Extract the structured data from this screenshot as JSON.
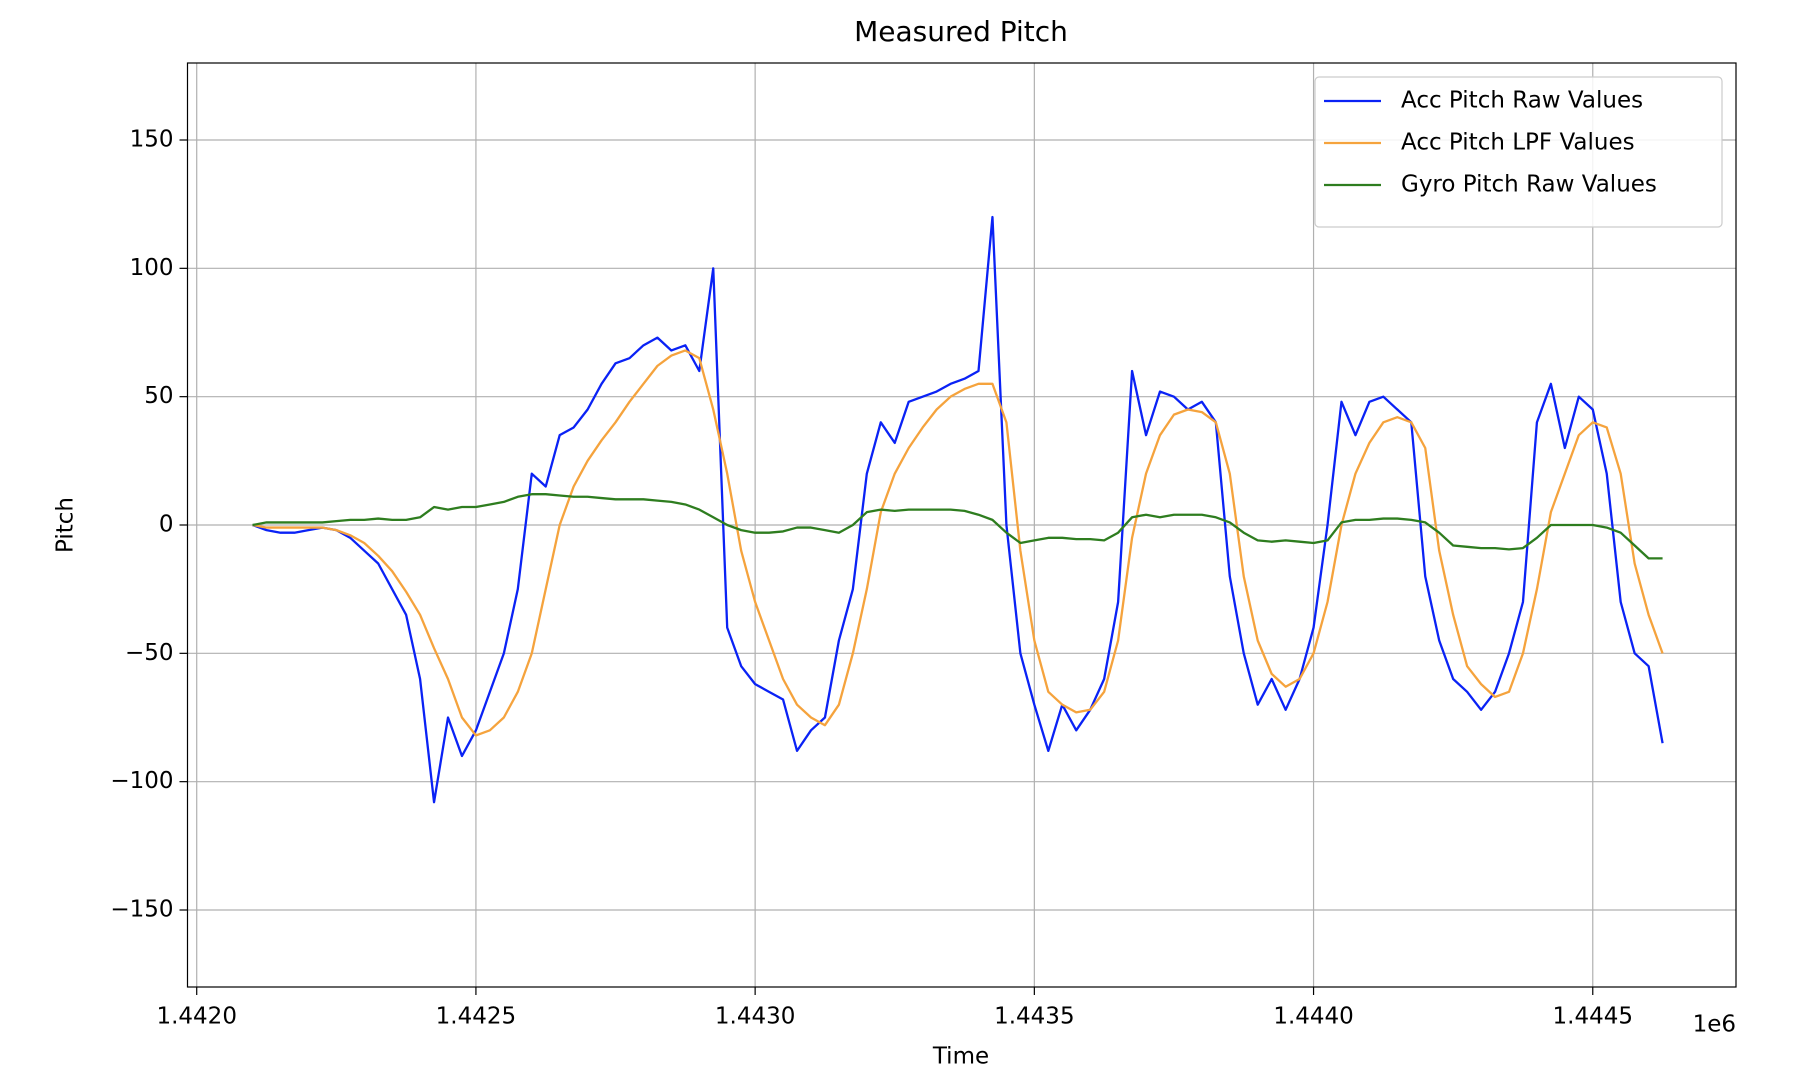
{
  "chart_data": {
    "type": "line",
    "title": "Measured Pitch",
    "xlabel": "Time",
    "ylabel": "Pitch",
    "x_offset_label": "1e6",
    "x": [
      1442100,
      1442125,
      1442150,
      1442175,
      1442200,
      1442225,
      1442250,
      1442275,
      1442300,
      1442325,
      1442350,
      1442375,
      1442400,
      1442425,
      1442450,
      1442475,
      1442500,
      1442525,
      1442550,
      1442575,
      1442600,
      1442625,
      1442650,
      1442675,
      1442700,
      1442725,
      1442750,
      1442775,
      1442800,
      1442825,
      1442850,
      1442875,
      1442900,
      1442925,
      1442950,
      1442975,
      1443000,
      1443025,
      1443050,
      1443075,
      1443100,
      1443125,
      1443150,
      1443175,
      1443200,
      1443225,
      1443250,
      1443275,
      1443300,
      1443325,
      1443350,
      1443375,
      1443400,
      1443425,
      1443450,
      1443475,
      1443500,
      1443525,
      1443550,
      1443575,
      1443600,
      1443625,
      1443650,
      1443675,
      1443700,
      1443725,
      1443750,
      1443775,
      1443800,
      1443825,
      1443850,
      1443875,
      1443900,
      1443925,
      1443950,
      1443975,
      1444000,
      1444025,
      1444050,
      1444075,
      1444100,
      1444125,
      1444150,
      1444175,
      1444200,
      1444225,
      1444250,
      1444275,
      1444300,
      1444325,
      1444350,
      1444375,
      1444400,
      1444425,
      1444450,
      1444475,
      1444500,
      1444525,
      1444550,
      1444575,
      1444600,
      1444625
    ],
    "series": [
      {
        "name": "Acc Pitch Raw Values",
        "color": "#0a22f5",
        "values": [
          0,
          -2,
          -3,
          -3,
          -2,
          -1,
          -2,
          -5,
          -10,
          -15,
          -25,
          -35,
          -60,
          -108,
          -75,
          -90,
          -80,
          -65,
          -50,
          -25,
          20,
          15,
          35,
          38,
          45,
          55,
          63,
          65,
          70,
          73,
          68,
          70,
          60,
          100,
          -40,
          -55,
          -62,
          -65,
          -68,
          -88,
          -80,
          -75,
          -45,
          -25,
          20,
          40,
          32,
          48,
          50,
          52,
          55,
          57,
          60,
          120,
          0,
          -50,
          -70,
          -88,
          -70,
          -80,
          -72,
          -60,
          -30,
          60,
          35,
          52,
          50,
          45,
          48,
          40,
          -20,
          -50,
          -70,
          -60,
          -72,
          -60,
          -40,
          0,
          48,
          35,
          48,
          50,
          45,
          40,
          -20,
          -45,
          -60,
          -65,
          -72,
          -65,
          -50,
          -30,
          40,
          55,
          30,
          50,
          45,
          20,
          -30,
          -50,
          -55,
          -85
        ]
      },
      {
        "name": "Acc Pitch LPF Values",
        "color": "#f5a33d",
        "values": [
          0,
          -1,
          -1,
          -1,
          -1,
          -1,
          -2,
          -4,
          -7,
          -12,
          -18,
          -26,
          -35,
          -48,
          -60,
          -75,
          -82,
          -80,
          -75,
          -65,
          -50,
          -25,
          0,
          15,
          25,
          33,
          40,
          48,
          55,
          62,
          66,
          68,
          65,
          45,
          20,
          -10,
          -30,
          -45,
          -60,
          -70,
          -75,
          -78,
          -70,
          -50,
          -25,
          5,
          20,
          30,
          38,
          45,
          50,
          53,
          55,
          55,
          40,
          -10,
          -45,
          -65,
          -70,
          -73,
          -72,
          -65,
          -45,
          -5,
          20,
          35,
          43,
          45,
          44,
          40,
          20,
          -20,
          -45,
          -58,
          -63,
          -60,
          -50,
          -30,
          0,
          20,
          32,
          40,
          42,
          40,
          30,
          -10,
          -35,
          -55,
          -62,
          -67,
          -65,
          -50,
          -25,
          5,
          20,
          35,
          40,
          38,
          20,
          -15,
          -35,
          -50
        ]
      },
      {
        "name": "Gyro Pitch Raw Values",
        "color": "#2e7d1f",
        "values": [
          0,
          1,
          1,
          1,
          1,
          1,
          1.5,
          2,
          2,
          2.5,
          2,
          2,
          3,
          7,
          6,
          7,
          7,
          8,
          9,
          11,
          12,
          12,
          11.5,
          11,
          11,
          10.5,
          10,
          10,
          10,
          9.5,
          9,
          8,
          6,
          3,
          0,
          -2,
          -3,
          -3,
          -2.5,
          -1,
          -1,
          -2,
          -3,
          0,
          5,
          6,
          5.5,
          6,
          6,
          6,
          6,
          5.5,
          4,
          2,
          -3,
          -7,
          -6,
          -5,
          -5,
          -5.5,
          -5.5,
          -6,
          -3,
          3,
          4,
          3,
          4,
          4,
          4,
          3,
          1,
          -3,
          -6,
          -6.5,
          -6,
          -6.5,
          -7,
          -6,
          1,
          2,
          2,
          2.5,
          2.5,
          2,
          1,
          -3,
          -8,
          -8.5,
          -9,
          -9,
          -9.5,
          -9,
          -5,
          0,
          0,
          0,
          0,
          -1,
          -3,
          -8,
          -13,
          -13
        ]
      }
    ],
    "xlim": [
      1441983.5,
      1444756.5
    ],
    "xticks": [
      {
        "value": 1442000,
        "label": "1.4420"
      },
      {
        "value": 1442500,
        "label": "1.4425"
      },
      {
        "value": 1443000,
        "label": "1.4430"
      },
      {
        "value": 1443500,
        "label": "1.4435"
      },
      {
        "value": 1444000,
        "label": "1.4440"
      },
      {
        "value": 1444500,
        "label": "1.4445"
      }
    ],
    "ylim": [
      -180,
      180
    ],
    "yticks": [
      {
        "value": -150,
        "label": "−150"
      },
      {
        "value": -100,
        "label": "−100"
      },
      {
        "value": -50,
        "label": "−50"
      },
      0,
      50,
      100,
      150
    ],
    "grid": true,
    "legend": "upper right"
  }
}
